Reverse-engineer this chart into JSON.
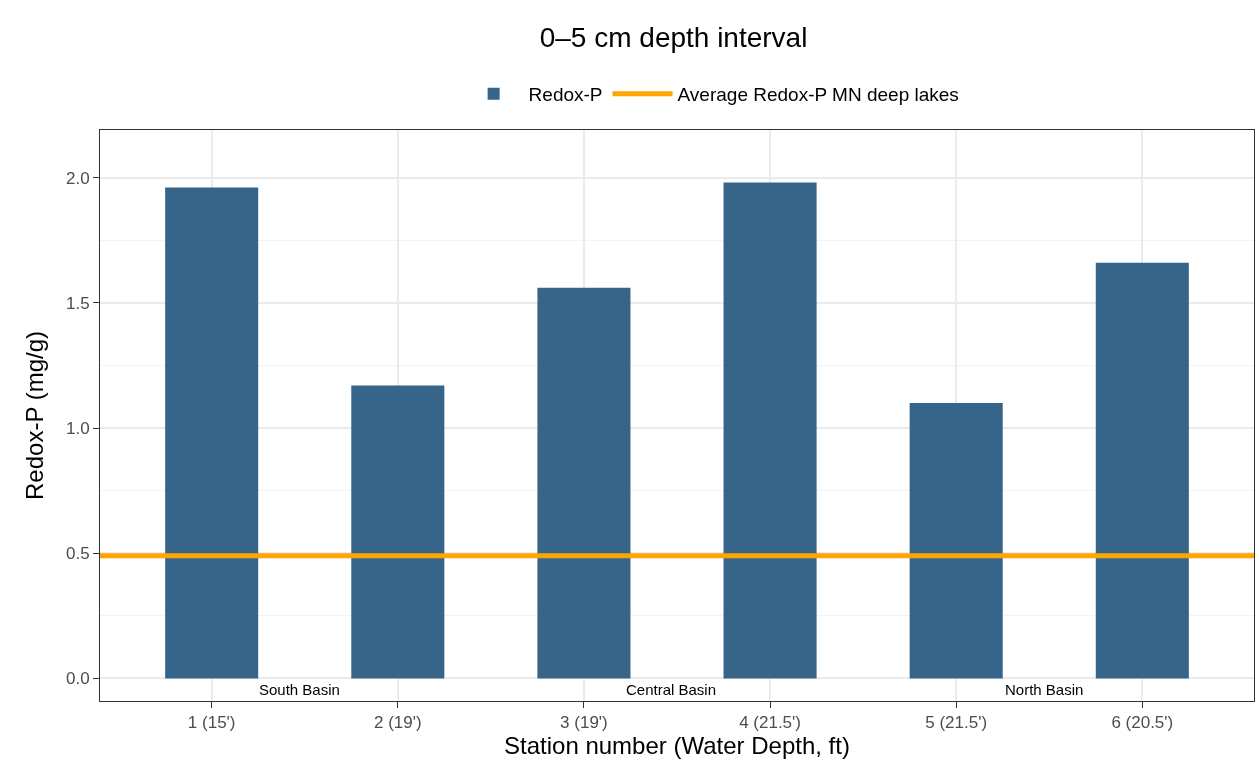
{
  "chart_data": {
    "type": "bar",
    "title": "0–5 cm depth interval",
    "xlabel": "Station number (Water Depth, ft)",
    "ylabel": "Redox-P (mg/g)",
    "categories": [
      "1 (15')",
      "2 (19')",
      "3 (19')",
      "4 (21.5')",
      "5 (21.5')",
      "6 (20.5')"
    ],
    "series": [
      {
        "name": "Redox-P",
        "color": "#376489",
        "values": [
          1.96,
          1.17,
          1.56,
          1.98,
          1.1,
          1.66
        ]
      }
    ],
    "ref_lines": [
      {
        "axis": "y",
        "value": 0.49,
        "label": "Average Redox-P MN deep lakes",
        "color": "#ffa500",
        "line_style": "solid"
      }
    ],
    "annotations": [
      "South Basin",
      "Central Basin",
      "North Basin"
    ],
    "ylim": [
      -0.09,
      2.19
    ],
    "yticks": [
      {
        "value": 0,
        "label": "0.0"
      },
      0.5,
      {
        "value": 1,
        "label": "1.0"
      },
      1.5,
      {
        "value": 2,
        "label": "2.0"
      }
    ],
    "grid": true,
    "legend": "top"
  }
}
